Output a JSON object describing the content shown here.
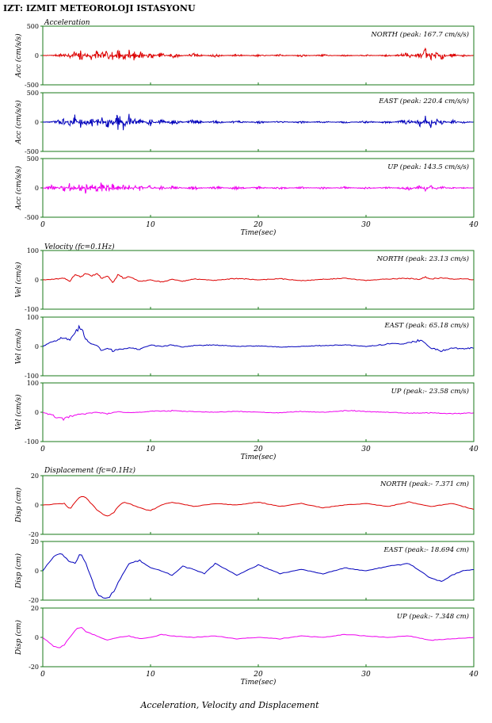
{
  "page": {
    "title": "IZT: IZMIT METEOROLOJI ISTASYONU",
    "caption": "Acceleration, Velocity and Displacement"
  },
  "colors": {
    "frame": "#1a7a1a",
    "north": "#dd0000",
    "east": "#0000bb",
    "up": "#ee00ee",
    "text": "#000000"
  },
  "chart_data": [
    {
      "type": "line",
      "section_label": "Acceleration",
      "xlabel": "Time(sec)",
      "ylabel": "Acc (cm/s/s)",
      "xlim": [
        0,
        40
      ],
      "ylim": [
        -500,
        500
      ],
      "x_ticks": [
        "0",
        "10",
        "20",
        "30",
        "40"
      ],
      "y_ticks": [
        "500",
        "0",
        "-500"
      ],
      "series": [
        {
          "name": "NORTH",
          "label": "NORTH (peak: 167.7 cm/s/s)",
          "color": "#dd0000",
          "peak": 167.7,
          "x": [
            0,
            1,
            2,
            2.5,
            3,
            3.5,
            4,
            4.5,
            5,
            5.5,
            6,
            6.5,
            7,
            7.5,
            8,
            8.5,
            9,
            10,
            11,
            12,
            14,
            16,
            18,
            20,
            22,
            24,
            26,
            28,
            30,
            32,
            34,
            35,
            35.5,
            36,
            36.5,
            37,
            38,
            39,
            40
          ],
          "y": [
            0,
            10,
            40,
            -60,
            110,
            -140,
            90,
            -90,
            120,
            -100,
            150,
            -120,
            160,
            -130,
            110,
            -100,
            90,
            -70,
            60,
            -50,
            40,
            -30,
            25,
            -20,
            20,
            -20,
            20,
            -15,
            15,
            -20,
            60,
            -80,
            140,
            -130,
            100,
            -70,
            40,
            -20,
            0
          ]
        },
        {
          "name": "EAST",
          "label": "EAST (peak: 220.4 cm/s/s)",
          "color": "#0000bb",
          "peak": 220.4,
          "x": [
            0,
            1,
            2,
            2.5,
            3,
            3.5,
            4,
            4.5,
            5,
            5.5,
            6,
            6.5,
            7,
            7.5,
            8,
            8.5,
            9,
            10,
            11,
            12,
            14,
            16,
            18,
            20,
            22,
            24,
            26,
            28,
            30,
            32,
            34,
            35,
            35.5,
            36,
            36.5,
            37,
            38,
            39,
            40
          ],
          "y": [
            0,
            15,
            60,
            -80,
            170,
            -150,
            120,
            -160,
            130,
            -120,
            180,
            -150,
            220,
            -170,
            150,
            -110,
            90,
            -80,
            60,
            -60,
            45,
            -35,
            30,
            -25,
            20,
            -20,
            20,
            -20,
            25,
            -25,
            60,
            -90,
            110,
            -100,
            90,
            -60,
            40,
            -20,
            0
          ]
        },
        {
          "name": "UP",
          "label": "UP (peak: 143.5 cm/s/s)",
          "color": "#ee00ee",
          "peak": 143.5,
          "x": [
            0,
            1,
            2,
            2.5,
            3,
            3.5,
            4,
            4.5,
            5,
            5.5,
            6,
            6.5,
            7,
            7.5,
            8,
            8.5,
            9,
            10,
            11,
            12,
            14,
            16,
            18,
            20,
            22,
            24,
            26,
            28,
            30,
            32,
            34,
            35,
            35.5,
            36,
            36.5,
            37,
            38,
            39,
            40
          ],
          "y": [
            0,
            60,
            -80,
            90,
            -100,
            110,
            -120,
            100,
            -110,
            143,
            -130,
            100,
            -90,
            80,
            -70,
            60,
            -60,
            50,
            -45,
            40,
            -35,
            30,
            -30,
            25,
            -25,
            20,
            -20,
            20,
            -20,
            20,
            -40,
            50,
            -60,
            50,
            -40,
            30,
            -20,
            15,
            0
          ]
        }
      ]
    },
    {
      "type": "line",
      "section_label": "Velocity (fc=0.1Hz)",
      "xlabel": "Time(sec)",
      "ylabel": "Vel (cm/s)",
      "xlim": [
        0,
        40
      ],
      "ylim": [
        -100,
        100
      ],
      "x_ticks": [
        "0",
        "10",
        "20",
        "30",
        "40"
      ],
      "y_ticks": [
        "100",
        "0",
        "-100"
      ],
      "series": [
        {
          "name": "NORTH",
          "label": "NORTH (peak: 23.13 cm/s)",
          "color": "#dd0000",
          "peak": 23.13,
          "x": [
            0,
            1,
            2,
            2.5,
            3,
            3.5,
            4,
            4.5,
            5,
            5.5,
            6,
            6.5,
            7,
            7.5,
            8,
            9,
            10,
            11,
            12,
            13,
            14,
            16,
            18,
            20,
            22,
            24,
            26,
            28,
            30,
            32,
            34,
            35,
            35.5,
            36,
            37,
            38,
            39,
            40
          ],
          "y": [
            0,
            2,
            5,
            -5,
            20,
            10,
            23,
            12,
            20,
            5,
            15,
            -10,
            18,
            5,
            10,
            -5,
            0,
            -8,
            2,
            -5,
            3,
            -2,
            5,
            0,
            4,
            -3,
            2,
            5,
            -2,
            3,
            5,
            2,
            10,
            3,
            7,
            2,
            4,
            0
          ]
        },
        {
          "name": "EAST",
          "label": "EAST (peak: 65.18 cm/s)",
          "color": "#0000bb",
          "peak": 65.18,
          "x": [
            0,
            1,
            2,
            2.5,
            3,
            3.3,
            3.6,
            4,
            4.5,
            5,
            5.5,
            6,
            6.5,
            7,
            8,
            9,
            10,
            11,
            12,
            13,
            14,
            16,
            18,
            20,
            22,
            24,
            26,
            28,
            30,
            32,
            34,
            35,
            35.5,
            36,
            37,
            38,
            39,
            40
          ],
          "y": [
            0,
            20,
            30,
            20,
            40,
            65,
            55,
            25,
            10,
            5,
            -15,
            -5,
            -15,
            -10,
            -5,
            -10,
            5,
            0,
            5,
            -2,
            3,
            5,
            0,
            2,
            -2,
            0,
            3,
            5,
            0,
            8,
            12,
            22,
            10,
            -5,
            -15,
            -5,
            -8,
            -5
          ]
        },
        {
          "name": "UP",
          "label": "UP (peak:- 23.58 cm/s)",
          "color": "#ee00ee",
          "peak": -23.58,
          "x": [
            0,
            1,
            1.5,
            2,
            2.5,
            3,
            4,
            5,
            6,
            7,
            8,
            9,
            10,
            12,
            14,
            16,
            18,
            20,
            22,
            24,
            26,
            28,
            28.5,
            30,
            32,
            34,
            36,
            38,
            40
          ],
          "y": [
            0,
            -12,
            -22,
            -23.6,
            -15,
            -10,
            -5,
            0,
            -5,
            2,
            -2,
            0,
            3,
            5,
            2,
            0,
            3,
            0,
            -2,
            3,
            0,
            5,
            6,
            2,
            0,
            -3,
            -2,
            -5,
            -3
          ]
        }
      ]
    },
    {
      "type": "line",
      "section_label": "Displacement (fc=0.1Hz)",
      "xlabel": "Time(sec)",
      "ylabel": "Disp (cm)",
      "xlim": [
        0,
        40
      ],
      "ylim": [
        -20,
        20
      ],
      "x_ticks": [
        "0",
        "10",
        "20",
        "30",
        "40"
      ],
      "y_ticks": [
        "20",
        "0",
        "-20"
      ],
      "series": [
        {
          "name": "NORTH",
          "label": "NORTH (peak:- 7.371 cm)",
          "color": "#dd0000",
          "peak": -7.371,
          "x": [
            0,
            1,
            2,
            2.5,
            3,
            3.5,
            4,
            4.5,
            5,
            5.5,
            6,
            6.5,
            7,
            7.5,
            8,
            9,
            10,
            11,
            12,
            14,
            16,
            18,
            20,
            22,
            24,
            26,
            28,
            30,
            32,
            34,
            36,
            38,
            40
          ],
          "y": [
            0,
            0.5,
            1,
            -3,
            2,
            6,
            5,
            1,
            -3,
            -6,
            -7.4,
            -6,
            -1,
            2,
            1,
            -2,
            -4,
            0,
            2,
            -1,
            1,
            0,
            2,
            -1,
            1,
            -2,
            0,
            1,
            -1,
            2,
            -1,
            1,
            -3
          ]
        },
        {
          "name": "EAST",
          "label": "EAST (peak:- 18.694 cm)",
          "color": "#0000bb",
          "peak": -18.694,
          "x": [
            0,
            0.5,
            1,
            1.5,
            2,
            2.5,
            3,
            3.5,
            4,
            4.5,
            5,
            5.5,
            6,
            6.5,
            7,
            8,
            9,
            10,
            11,
            12,
            13,
            14,
            15,
            16,
            17,
            18,
            20,
            22,
            24,
            26,
            28,
            30,
            32,
            34,
            35,
            36,
            37,
            38,
            39,
            40
          ],
          "y": [
            0,
            5,
            10,
            12,
            10,
            6,
            5,
            12,
            5,
            -5,
            -15,
            -18,
            -18.7,
            -15,
            -8,
            5,
            7,
            2,
            0,
            -3,
            3,
            1,
            -2,
            5,
            1,
            -3,
            4,
            -2,
            1,
            -2,
            2,
            0,
            3,
            5,
            0,
            -5,
            -7,
            -3,
            0,
            1
          ]
        },
        {
          "name": "UP",
          "label": "UP (peak:- 7.348 cm)",
          "color": "#ee00ee",
          "peak": -7.348,
          "x": [
            0,
            0.5,
            1,
            1.5,
            2,
            2.5,
            3,
            3.5,
            4,
            5,
            6,
            7,
            8,
            9,
            10,
            11,
            12,
            14,
            16,
            18,
            20,
            22,
            24,
            26,
            28,
            30,
            32,
            34,
            36,
            38,
            40
          ],
          "y": [
            0,
            -3,
            -6,
            -7.3,
            -5,
            0,
            5,
            7,
            4,
            1,
            -2,
            0,
            1,
            -1,
            0,
            2,
            1,
            0,
            1,
            -1,
            0,
            -1,
            1,
            0,
            2,
            1,
            0,
            1,
            -2,
            -1,
            0
          ]
        }
      ]
    }
  ]
}
